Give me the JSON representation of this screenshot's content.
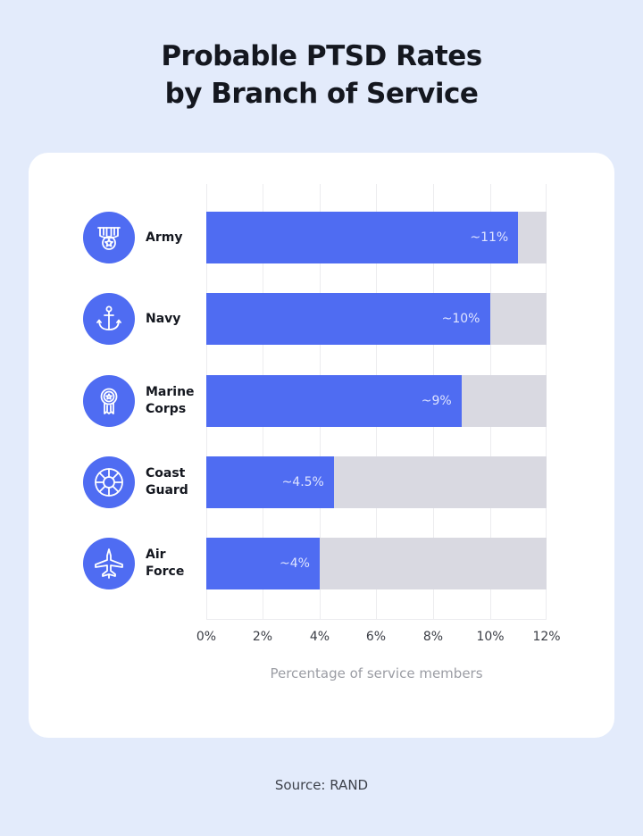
{
  "title_line1": "Probable PTSD Rates",
  "title_line2": "by Branch of Service",
  "source": "Source: RAND",
  "colors": {
    "background": "#e3ebfb",
    "card": "#ffffff",
    "bar": "#4f6cf2",
    "track": "#d9d9e1",
    "text": "#14171f",
    "axis_label": "#9b9da4"
  },
  "chart_data": {
    "type": "bar",
    "orientation": "horizontal",
    "title": "Probable PTSD Rates by Branch of Service",
    "categories": [
      "Army",
      "Navy",
      "Marine Corps",
      "Coast Guard",
      "Air Force"
    ],
    "category_labels": [
      "Army",
      "Navy",
      "Marine\nCorps",
      "Coast\nGuard",
      "Air\nForce"
    ],
    "category_icons": [
      "army-medal-icon",
      "anchor-icon",
      "medal-ribbon-icon",
      "life-ring-icon",
      "fighter-jet-icon"
    ],
    "values": [
      11,
      10,
      9,
      4.5,
      4
    ],
    "data_labels": [
      "~11%",
      "~10%",
      "~9%",
      "~4.5%",
      "~4%"
    ],
    "xlabel": "Percentage of service members",
    "ylabel": "",
    "xlim": [
      0,
      12
    ],
    "xticks": [
      "0%",
      "2%",
      "4%",
      "6%",
      "8%",
      "10%",
      "12%"
    ],
    "grid": true,
    "legend": null,
    "source": "RAND"
  }
}
